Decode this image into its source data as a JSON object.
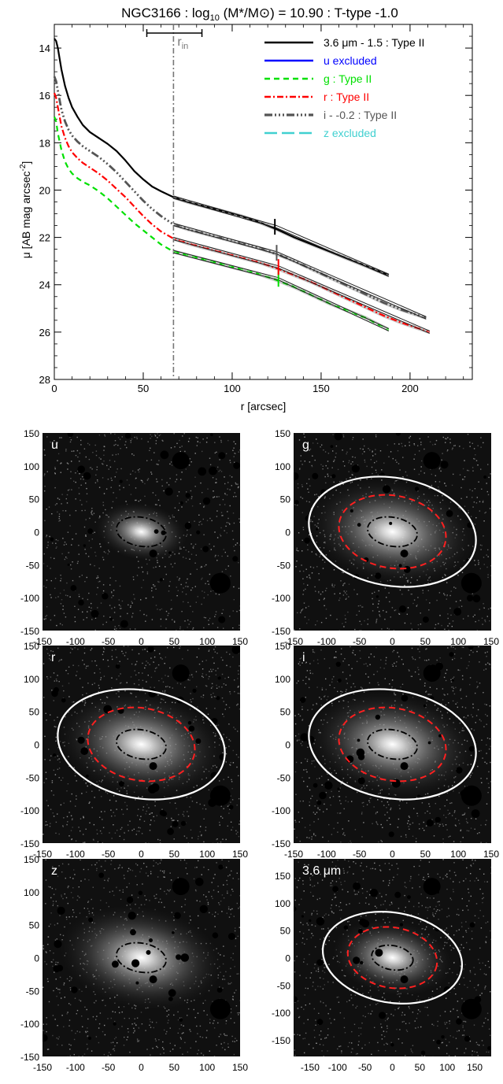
{
  "figure": {
    "title": "NGC3166 : log$10$ (M*/M⊙) = 10.90 : T-type -1.0"
  },
  "chart_data": [
    {
      "type": "line",
      "title": "NGC3166 : log10 (M*/M⊙) = 10.90 : T-type -1.0",
      "xlabel": "r [arcsec]",
      "ylabel": "μ [AB mag arcsec⁻²]",
      "xlim": [
        0,
        235
      ],
      "ylim": [
        28,
        13
      ],
      "y_inverted": true,
      "x_ticks": [
        "0",
        "50",
        "100",
        "150",
        "200"
      ],
      "y_ticks": [
        "14",
        "16",
        "18",
        "20",
        "22",
        "24",
        "26",
        "28"
      ],
      "grid": false,
      "legend_position": "top-right",
      "r_in_label": "r",
      "r_in_sub": "in",
      "r_in": 67,
      "r_in_range": [
        52,
        83
      ],
      "series": [
        {
          "name": "3.6 μm - 1.5 : Type II",
          "color": "#000000",
          "dash": "solid",
          "width": 2.2,
          "x": [
            0,
            1,
            2,
            4,
            6,
            8,
            10,
            13,
            16,
            20,
            25,
            30,
            35,
            40,
            45,
            50,
            55,
            60,
            67,
            75,
            85,
            95,
            105,
            115,
            125,
            135,
            145,
            155,
            165,
            175,
            188
          ],
          "y": [
            13.6,
            13.7,
            14.0,
            14.9,
            15.6,
            16.1,
            16.5,
            16.9,
            17.25,
            17.55,
            17.8,
            18.05,
            18.35,
            18.75,
            19.2,
            19.55,
            19.85,
            20.05,
            20.3,
            20.5,
            20.7,
            20.9,
            21.1,
            21.35,
            21.65,
            22.0,
            22.3,
            22.6,
            22.9,
            23.2,
            23.6
          ],
          "fit": {
            "x": [
              67,
              125,
              188
            ],
            "y": [
              20.3,
              21.55,
              23.6
            ]
          },
          "break": 124
        },
        {
          "name": "u excluded",
          "color": "#0000ff",
          "dash": "solid",
          "width": 2.2,
          "x": [],
          "y": []
        },
        {
          "name": "g : Type II",
          "color": "#00e000",
          "dash": "7,5",
          "width": 2.2,
          "x": [
            0,
            1,
            2,
            4,
            6,
            8,
            10,
            13,
            16,
            20,
            25,
            30,
            35,
            40,
            45,
            50,
            55,
            60,
            67,
            75,
            85,
            95,
            105,
            115,
            125,
            135,
            145,
            155,
            165,
            175,
            188
          ],
          "y": [
            16.9,
            17.1,
            17.6,
            18.3,
            18.8,
            19.1,
            19.3,
            19.5,
            19.65,
            19.8,
            20.05,
            20.35,
            20.7,
            21.05,
            21.4,
            21.7,
            22.0,
            22.3,
            22.6,
            22.75,
            22.95,
            23.15,
            23.35,
            23.55,
            23.8,
            24.1,
            24.45,
            24.8,
            25.1,
            25.4,
            25.9
          ],
          "fit": {
            "x": [
              67,
              126,
              188
            ],
            "y": [
              22.6,
              23.75,
              25.9
            ]
          },
          "break": 126
        },
        {
          "name": "r : Type II",
          "color": "#ff0000",
          "dash": "8,3,2,3",
          "width": 2.2,
          "x": [
            0,
            1,
            2,
            4,
            6,
            8,
            10,
            13,
            16,
            20,
            25,
            30,
            35,
            40,
            45,
            50,
            55,
            60,
            67,
            75,
            85,
            95,
            105,
            115,
            125,
            135,
            145,
            155,
            165,
            175,
            185,
            195,
            211
          ],
          "y": [
            15.9,
            16.1,
            16.5,
            17.3,
            17.8,
            18.15,
            18.4,
            18.65,
            18.85,
            19.05,
            19.3,
            19.6,
            19.95,
            20.3,
            20.7,
            21.1,
            21.45,
            21.75,
            22.05,
            22.25,
            22.45,
            22.65,
            22.85,
            23.05,
            23.3,
            23.6,
            23.9,
            24.25,
            24.6,
            24.95,
            25.3,
            25.6,
            26.0
          ],
          "fit": {
            "x": [
              67,
              126,
              211
            ],
            "y": [
              22.05,
              23.25,
              26.0
            ]
          },
          "break": 126
        },
        {
          "name": "i - -0.2 : Type II",
          "color": "#555555",
          "dash": "10,3,2,3,2,3,2,3",
          "width": 2.8,
          "x": [
            0,
            1,
            2,
            4,
            6,
            8,
            10,
            13,
            16,
            20,
            25,
            30,
            35,
            40,
            45,
            50,
            55,
            60,
            67,
            75,
            85,
            95,
            105,
            115,
            125,
            135,
            145,
            155,
            165,
            175,
            185,
            195,
            209
          ],
          "y": [
            15.2,
            15.4,
            15.8,
            16.6,
            17.1,
            17.45,
            17.7,
            17.95,
            18.15,
            18.35,
            18.6,
            18.9,
            19.25,
            19.65,
            20.05,
            20.45,
            20.8,
            21.1,
            21.45,
            21.65,
            21.85,
            22.05,
            22.25,
            22.45,
            22.7,
            23.0,
            23.35,
            23.7,
            24.05,
            24.4,
            24.75,
            25.05,
            25.4
          ],
          "fit": {
            "x": [
              67,
              125,
              209
            ],
            "y": [
              21.45,
              22.65,
              25.4
            ]
          },
          "break": 125
        },
        {
          "name": "z excluded",
          "color": "#40d0d0",
          "dash": "16,6",
          "width": 2.2,
          "x": [],
          "y": []
        }
      ]
    },
    {
      "type": "image",
      "label": "u",
      "xlim": [
        -150,
        150
      ],
      "ylim": [
        -150,
        150
      ],
      "x_ticks": [
        "-150",
        "-100",
        "-50",
        "0",
        "50",
        "100",
        "150"
      ],
      "y_ticks": [
        "150",
        "100",
        "50",
        "0",
        "-50",
        "-100",
        "-150"
      ],
      "inner_ellipse": {
        "a": 38,
        "b": 22,
        "pa": 10
      },
      "red_ellipse": null,
      "white_ellipse": null
    },
    {
      "type": "image",
      "label": "g",
      "xlim": [
        -150,
        150
      ],
      "ylim": [
        -150,
        150
      ],
      "x_ticks": [
        "-150",
        "-100",
        "-50",
        "0",
        "50",
        "100",
        "150"
      ],
      "y_ticks": [
        "150",
        "100",
        "50",
        "0",
        "-50",
        "-100",
        "-150"
      ],
      "inner_ellipse": {
        "a": 38,
        "b": 22,
        "pa": 10
      },
      "red_ellipse": {
        "a": 82,
        "b": 55,
        "pa": 10
      },
      "white_ellipse": {
        "a": 128,
        "b": 82,
        "pa": 10
      }
    },
    {
      "type": "image",
      "label": "r",
      "xlim": [
        -150,
        150
      ],
      "ylim": [
        -150,
        150
      ],
      "x_ticks": [
        "-150",
        "-100",
        "-50",
        "0",
        "50",
        "100",
        "150"
      ],
      "y_ticks": [
        "150",
        "100",
        "50",
        "0",
        "-50",
        "-100",
        "-150"
      ],
      "inner_ellipse": {
        "a": 38,
        "b": 22,
        "pa": 10
      },
      "red_ellipse": {
        "a": 82,
        "b": 55,
        "pa": 10
      },
      "white_ellipse": {
        "a": 128,
        "b": 82,
        "pa": 10
      }
    },
    {
      "type": "image",
      "label": "i",
      "xlim": [
        -150,
        150
      ],
      "ylim": [
        -150,
        150
      ],
      "x_ticks": [
        "-150",
        "-100",
        "-50",
        "0",
        "50",
        "100",
        "150"
      ],
      "y_ticks": [
        "150",
        "100",
        "50",
        "0",
        "-50",
        "-100",
        "-150"
      ],
      "inner_ellipse": {
        "a": 38,
        "b": 22,
        "pa": 10
      },
      "red_ellipse": {
        "a": 82,
        "b": 55,
        "pa": 10
      },
      "white_ellipse": {
        "a": 128,
        "b": 82,
        "pa": 10
      }
    },
    {
      "type": "image",
      "label": "z",
      "xlim": [
        -150,
        150
      ],
      "ylim": [
        -150,
        150
      ],
      "x_ticks": [
        "-150",
        "-100",
        "-50",
        "0",
        "50",
        "100",
        "150"
      ],
      "y_ticks": [
        "150",
        "100",
        "50",
        "0",
        "-50",
        "-100",
        "-150"
      ],
      "inner_ellipse": {
        "a": 38,
        "b": 22,
        "pa": 10
      },
      "red_ellipse": null,
      "white_ellipse": null
    },
    {
      "type": "image",
      "label": "3.6 μm",
      "xlim": [
        -180,
        180
      ],
      "ylim": [
        -180,
        180
      ],
      "x_ticks": [
        "-150",
        "-100",
        "-50",
        "0",
        "50",
        "100",
        "150"
      ],
      "y_ticks": [
        "150",
        "100",
        "50",
        "0",
        "-50",
        "-100",
        "-150"
      ],
      "inner_ellipse": {
        "a": 38,
        "b": 22,
        "pa": 10
      },
      "red_ellipse": {
        "a": 82,
        "b": 55,
        "pa": 10
      },
      "white_ellipse": {
        "a": 128,
        "b": 82,
        "pa": 10
      }
    }
  ]
}
